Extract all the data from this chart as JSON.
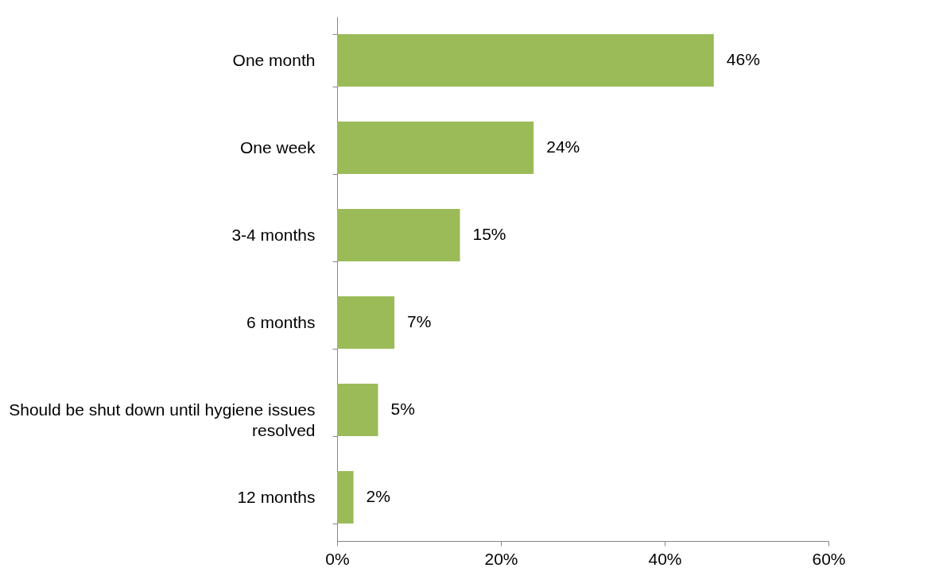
{
  "chart_data": {
    "type": "bar",
    "orientation": "horizontal",
    "categories": [
      "One month",
      "One week",
      "3-4 months",
      "6 months",
      "Should be shut down until hygiene issues resolved",
      "12 months"
    ],
    "values": [
      46,
      24,
      15,
      7,
      5,
      2
    ],
    "value_labels": [
      "46%",
      "24%",
      "15%",
      "7%",
      "5%",
      "2%"
    ],
    "color": "#9bbb59",
    "xlim": [
      0,
      60
    ],
    "xticks": [
      {
        "value": 0,
        "label": "0%"
      },
      {
        "value": 20,
        "label": "20%"
      },
      {
        "value": 40,
        "label": "40%"
      },
      {
        "value": 60,
        "label": "60%"
      }
    ],
    "grid": false
  }
}
